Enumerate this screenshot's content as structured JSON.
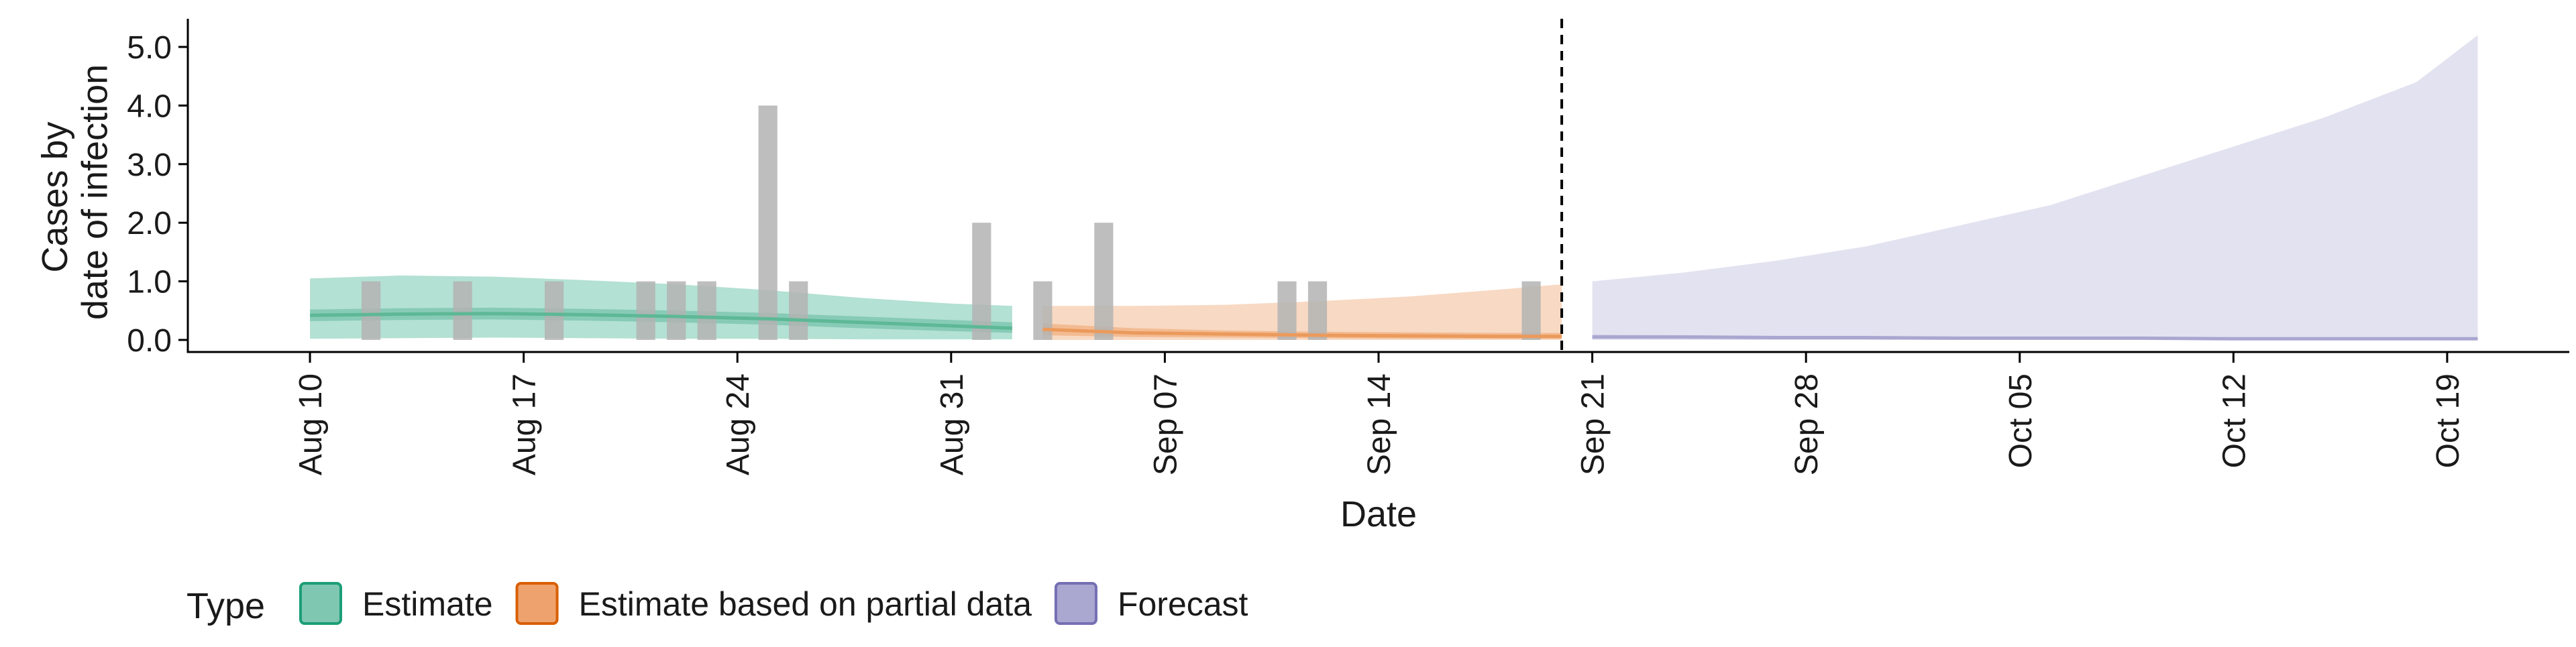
{
  "chart_data": {
    "type": "bar",
    "title": "",
    "xlabel": "Date",
    "ylabel_lines": [
      "Cases by",
      "date of infection"
    ],
    "ylim": [
      0,
      5.2
    ],
    "y_ticks": [
      0,
      1,
      2,
      3,
      4,
      5
    ],
    "y_tick_labels": [
      "0.0",
      "1.0",
      "2.0",
      "3.0",
      "4.0",
      "5.0"
    ],
    "x_ticks": [
      "2020-08-10",
      "2020-08-17",
      "2020-08-24",
      "2020-08-31",
      "2020-09-07",
      "2020-09-14",
      "2020-09-21",
      "2020-09-28",
      "2020-10-05",
      "2020-10-12",
      "2020-10-19"
    ],
    "x_tick_labels": [
      "Aug 10",
      "Aug 17",
      "Aug 24",
      "Aug 31",
      "Sep 07",
      "Sep 14",
      "Sep 21",
      "Sep 28",
      "Oct 05",
      "Oct 12",
      "Oct 19"
    ],
    "x_range": [
      "2020-08-06",
      "2020-10-23"
    ],
    "forecast_start": "2020-09-20",
    "grid": false,
    "legend_position": "bottom-left",
    "legend": {
      "title": "Type",
      "items": [
        {
          "label": "Estimate",
          "fill": "#7fc7b0",
          "stroke": "#1b9e77"
        },
        {
          "label": "Estimate based on partial data",
          "fill": "#eea36e",
          "stroke": "#d95f02"
        },
        {
          "label": "Forecast",
          "fill": "#aaa7d1",
          "stroke": "#7570b3"
        }
      ]
    },
    "bars": {
      "color": "#b3b3b3",
      "data": [
        {
          "date": "2020-08-12",
          "value": 1
        },
        {
          "date": "2020-08-15",
          "value": 1
        },
        {
          "date": "2020-08-18",
          "value": 1
        },
        {
          "date": "2020-08-21",
          "value": 1
        },
        {
          "date": "2020-08-22",
          "value": 1
        },
        {
          "date": "2020-08-23",
          "value": 1
        },
        {
          "date": "2020-08-25",
          "value": 4
        },
        {
          "date": "2020-08-26",
          "value": 1
        },
        {
          "date": "2020-09-01",
          "value": 2
        },
        {
          "date": "2020-09-03",
          "value": 1
        },
        {
          "date": "2020-09-05",
          "value": 2
        },
        {
          "date": "2020-09-11",
          "value": 1
        },
        {
          "date": "2020-09-12",
          "value": 1
        },
        {
          "date": "2020-09-19",
          "value": 1
        }
      ]
    },
    "series": [
      {
        "type": "Estimate",
        "colors": {
          "outer": "#a6dccb",
          "inner": "#7fc7b0",
          "line": "#5db896"
        },
        "dates": [
          "2020-08-10",
          "2020-08-13",
          "2020-08-16",
          "2020-08-19",
          "2020-08-22",
          "2020-08-25",
          "2020-08-28",
          "2020-08-31",
          "2020-09-02"
        ],
        "median": [
          0.42,
          0.44,
          0.45,
          0.43,
          0.4,
          0.36,
          0.3,
          0.24,
          0.2
        ],
        "inner_lower": [
          0.32,
          0.34,
          0.35,
          0.33,
          0.3,
          0.26,
          0.2,
          0.15,
          0.12
        ],
        "inner_upper": [
          0.52,
          0.54,
          0.55,
          0.53,
          0.5,
          0.46,
          0.4,
          0.34,
          0.3
        ],
        "outer_lower": [
          0.02,
          0.03,
          0.04,
          0.03,
          0.02,
          0.02,
          0.01,
          0.01,
          0.01
        ],
        "outer_upper": [
          1.05,
          1.1,
          1.08,
          1.02,
          0.95,
          0.85,
          0.72,
          0.62,
          0.58
        ]
      },
      {
        "type": "Estimate based on partial data",
        "colors": {
          "outer": "#f7d2b8",
          "inner": "#f2b58a",
          "line": "#eb9a5c"
        },
        "dates": [
          "2020-09-03",
          "2020-09-06",
          "2020-09-09",
          "2020-09-12",
          "2020-09-15",
          "2020-09-18",
          "2020-09-20"
        ],
        "median": [
          0.18,
          0.12,
          0.1,
          0.08,
          0.07,
          0.06,
          0.06
        ],
        "inner_lower": [
          0.08,
          0.05,
          0.04,
          0.03,
          0.02,
          0.02,
          0.02
        ],
        "inner_upper": [
          0.28,
          0.2,
          0.16,
          0.14,
          0.13,
          0.12,
          0.12
        ],
        "outer_lower": [
          0.0,
          0.0,
          0.0,
          0.0,
          0.0,
          0.0,
          0.0
        ],
        "outer_upper": [
          0.58,
          0.58,
          0.6,
          0.66,
          0.74,
          0.86,
          0.95
        ]
      },
      {
        "type": "Forecast",
        "colors": {
          "outer": "#dedded",
          "inner": "#c9c7e2",
          "line": "#a9a6d0"
        },
        "dates": [
          "2020-09-21",
          "2020-09-24",
          "2020-09-27",
          "2020-09-30",
          "2020-10-03",
          "2020-10-06",
          "2020-10-09",
          "2020-10-12",
          "2020-10-15",
          "2020-10-18",
          "2020-10-20"
        ],
        "median": [
          0.05,
          0.05,
          0.04,
          0.04,
          0.03,
          0.03,
          0.03,
          0.02,
          0.02,
          0.02,
          0.02
        ],
        "inner_lower": [
          0.02,
          0.02,
          0.01,
          0.01,
          0.01,
          0.01,
          0.01,
          0.0,
          0.0,
          0.0,
          0.0
        ],
        "inner_upper": [
          0.09,
          0.08,
          0.07,
          0.06,
          0.05,
          0.05,
          0.04,
          0.04,
          0.04,
          0.03,
          0.03
        ],
        "outer_lower": [
          0.0,
          0.0,
          0.0,
          0.0,
          0.0,
          0.0,
          0.0,
          0.0,
          0.0,
          0.0,
          0.0
        ],
        "outer_upper": [
          1.0,
          1.15,
          1.35,
          1.6,
          1.95,
          2.3,
          2.8,
          3.3,
          3.8,
          4.4,
          5.2
        ]
      }
    ]
  }
}
